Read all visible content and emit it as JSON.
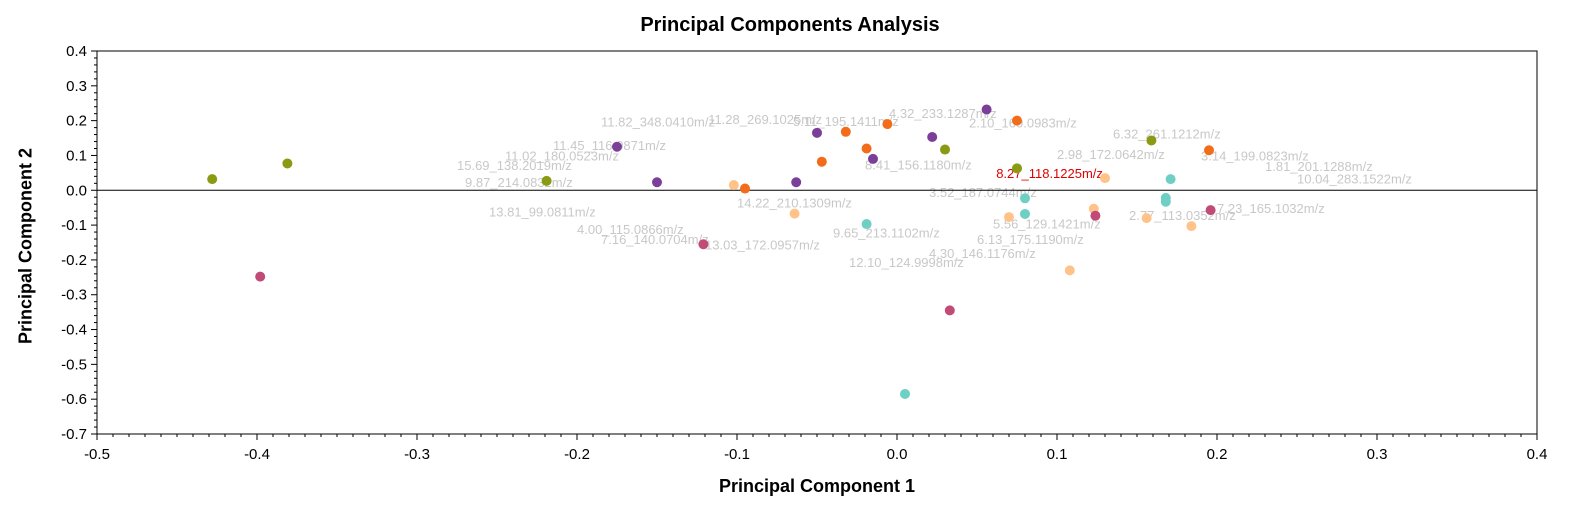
{
  "title": "Principal Components Analysis",
  "chart_data": {
    "type": "scatter",
    "title": "Principal Components Analysis",
    "xlabel": "Principal Component 1",
    "ylabel": "Principal Component 2",
    "xlim": [
      -0.5,
      0.4
    ],
    "ylim": [
      -0.7,
      0.4
    ],
    "x_ticks": [
      -0.5,
      -0.4,
      -0.3,
      -0.2,
      -0.1,
      0.0,
      0.1,
      0.2,
      0.3,
      0.4
    ],
    "x_tick_labels": [
      "-0.5",
      "-0.4",
      "-0.3",
      "-0.2",
      "-0.1",
      "0.0",
      "0.1",
      "0.2",
      "0.3",
      "0.4"
    ],
    "y_ticks": [
      0.4,
      0.3,
      0.2,
      0.1,
      0.0,
      -0.1,
      -0.2,
      -0.3,
      -0.4,
      -0.5,
      -0.6,
      -0.7
    ],
    "y_tick_labels": [
      "0.4",
      "0.3",
      "0.2",
      "0.1",
      "0.0",
      "-0.1",
      "-0.2",
      "-0.3",
      "-0.4",
      "-0.5",
      "-0.6",
      "-0.7"
    ],
    "zero_line": true,
    "grid": false,
    "loadings_labels_color": "#c8c8c8",
    "loadings_labels": [
      {
        "x": -0.185,
        "y": 0.183,
        "text": "11.82_348.0410m/z"
      },
      {
        "x": -0.118,
        "y": 0.19,
        "text": "11.28_269.1025m/z"
      },
      {
        "x": -0.065,
        "y": 0.185,
        "text": "5.11_195.1411m/z"
      },
      {
        "x": -0.005,
        "y": 0.208,
        "text": "4.32_233.1287m/z"
      },
      {
        "x": 0.045,
        "y": 0.18,
        "text": "2.10_160.0983m/z"
      },
      {
        "x": -0.215,
        "y": 0.115,
        "text": "11.45_116.0871m/z"
      },
      {
        "x": -0.245,
        "y": 0.085,
        "text": "11.02_180.0523m/z"
      },
      {
        "x": -0.275,
        "y": 0.058,
        "text": "15.69_138.2019m/z"
      },
      {
        "x": -0.27,
        "y": 0.01,
        "text": "9.87_214.0832m/z"
      },
      {
        "x": -0.255,
        "y": -0.075,
        "text": "13.81_99.0811m/z"
      },
      {
        "x": -0.2,
        "y": -0.125,
        "text": "4.00_115.0866m/z"
      },
      {
        "x": -0.185,
        "y": -0.155,
        "text": "7.16_140.0704m/z"
      },
      {
        "x": -0.12,
        "y": -0.17,
        "text": "13.03_172.0957m/z"
      },
      {
        "x": -0.04,
        "y": -0.135,
        "text": "9.65_213.1102m/z"
      },
      {
        "x": -0.03,
        "y": -0.22,
        "text": "12.10_124.9998m/z"
      },
      {
        "x": 0.02,
        "y": -0.195,
        "text": "4.30_146.1176m/z"
      },
      {
        "x": 0.05,
        "y": -0.155,
        "text": "6.13_175.1190m/z"
      },
      {
        "x": 0.135,
        "y": 0.148,
        "text": "6.32_261.1212m/z"
      },
      {
        "x": 0.19,
        "y": 0.085,
        "text": "3.14_199.0823m/z"
      },
      {
        "x": 0.23,
        "y": 0.055,
        "text": "1.81_201.1288m/z"
      },
      {
        "x": 0.25,
        "y": 0.02,
        "text": "10.04_283.1522m/z"
      },
      {
        "x": 0.2,
        "y": -0.065,
        "text": "7.23_165.1032m/z"
      },
      {
        "x": 0.145,
        "y": -0.085,
        "text": "2.77_113.0352m/z"
      },
      {
        "x": 0.06,
        "y": -0.11,
        "text": "5.56_129.1421m/z"
      },
      {
        "x": -0.02,
        "y": 0.06,
        "text": "8.41_156.1180m/z"
      },
      {
        "x": 0.02,
        "y": -0.02,
        "text": "3.52_187.0744m/z"
      },
      {
        "x": -0.1,
        "y": -0.05,
        "text": "14.22_210.1309m/z"
      },
      {
        "x": 0.1,
        "y": 0.09,
        "text": "2.98_172.0642m/z"
      }
    ],
    "highlight_label": {
      "x": 0.062,
      "y": 0.035,
      "text": "8.27_118.1225m/z",
      "color": "#e00000"
    },
    "series": [
      {
        "color": "#8a9a12",
        "points": [
          [
            -0.428,
            0.032
          ],
          [
            -0.381,
            0.077
          ],
          [
            -0.219,
            0.027
          ],
          [
            0.03,
            0.117
          ],
          [
            0.075,
            0.063
          ],
          [
            0.159,
            0.143
          ]
        ]
      },
      {
        "color": "#7b3f9a",
        "points": [
          [
            -0.175,
            0.125
          ],
          [
            -0.15,
            0.023
          ],
          [
            -0.063,
            0.023
          ],
          [
            -0.05,
            0.165
          ],
          [
            -0.015,
            0.09
          ],
          [
            0.022,
            0.153
          ],
          [
            0.056,
            0.232
          ]
        ]
      },
      {
        "color": "#f26c1a",
        "points": [
          [
            -0.095,
            0.005
          ],
          [
            -0.047,
            0.082
          ],
          [
            -0.032,
            0.168
          ],
          [
            -0.019,
            0.12
          ],
          [
            -0.006,
            0.19
          ],
          [
            0.075,
            0.2
          ],
          [
            0.195,
            0.115
          ]
        ]
      },
      {
        "color": "#ffc38a",
        "points": [
          [
            -0.102,
            0.015
          ],
          [
            -0.064,
            -0.067
          ],
          [
            0.07,
            -0.077
          ],
          [
            0.108,
            -0.23
          ],
          [
            0.123,
            -0.053
          ],
          [
            0.13,
            0.035
          ],
          [
            0.156,
            -0.08
          ],
          [
            0.184,
            -0.103
          ]
        ]
      },
      {
        "color": "#c24a76",
        "points": [
          [
            -0.398,
            -0.248
          ],
          [
            -0.121,
            -0.155
          ],
          [
            0.033,
            -0.345
          ],
          [
            0.124,
            -0.073
          ],
          [
            0.196,
            -0.057
          ]
        ]
      },
      {
        "color": "#6fcfc4",
        "points": [
          [
            -0.019,
            -0.097
          ],
          [
            0.005,
            -0.585
          ],
          [
            0.08,
            -0.023
          ],
          [
            0.08,
            -0.068
          ],
          [
            0.168,
            -0.022
          ],
          [
            0.168,
            -0.033
          ],
          [
            0.171,
            0.032
          ]
        ]
      }
    ]
  }
}
